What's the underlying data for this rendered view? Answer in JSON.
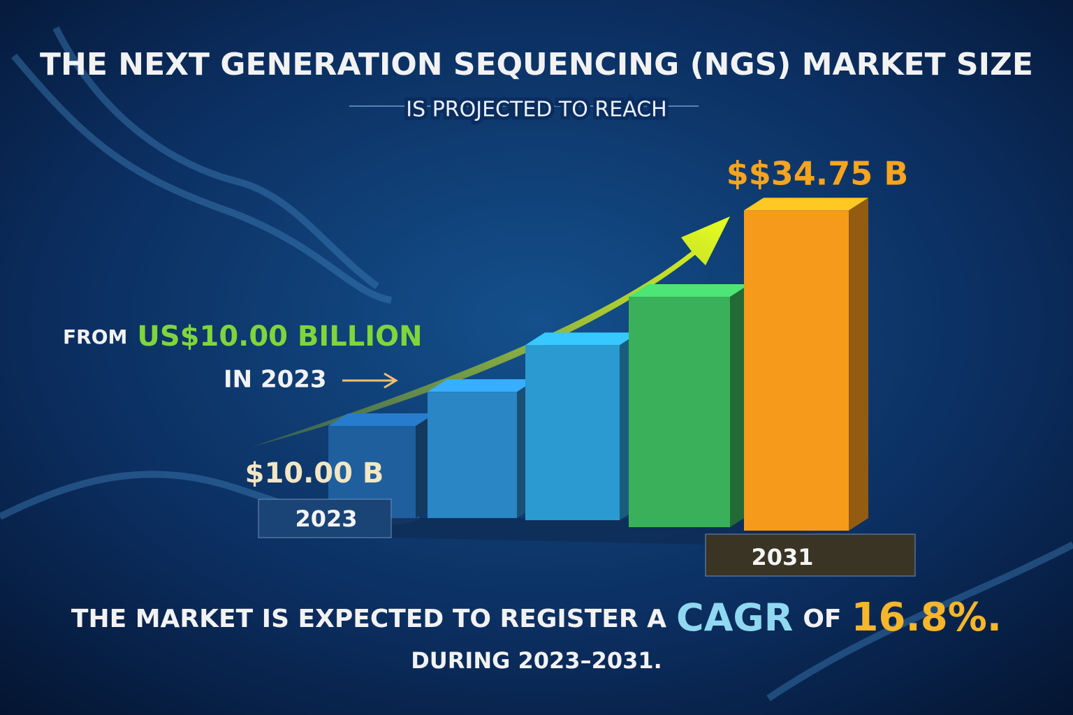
{
  "chart_data": {
    "type": "bar",
    "title": "THE NEXT GENERATION SEQUENCING (NGS) MARKET SIZE",
    "subtitle": "IS PROJECTED TO REACH",
    "from_prefix": "FROM",
    "from_value": "US$10.00 BILLION",
    "from_year": "IN 2023",
    "cagr_sentence": [
      "THE MARKET IS EXPECTED TO REGISTER A",
      "CAGR",
      "OF",
      "16.8%."
    ],
    "period": "DURING 2023–2031.",
    "categories": [
      "2023",
      null,
      null,
      null,
      "2031"
    ],
    "values": [
      10,
      13.7,
      19,
      25,
      34.75
    ],
    "value_labels": [
      "$10.00 B",
      null,
      null,
      null,
      "$$34.75 B"
    ],
    "colors": [
      "#1f5f9e",
      "#2a86c4",
      "#2a9ad0",
      "#3bb05a",
      "#f59a1a"
    ]
  }
}
